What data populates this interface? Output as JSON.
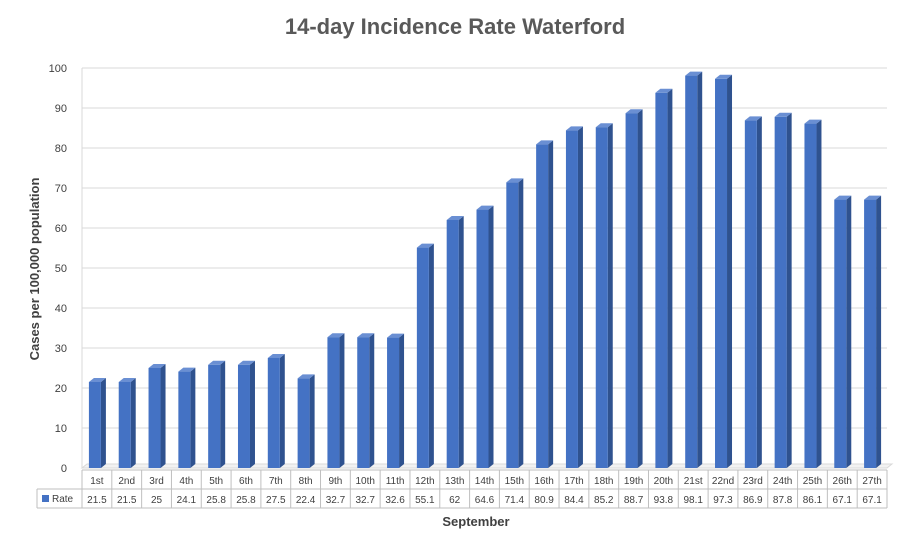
{
  "chart_data": {
    "type": "bar",
    "title": "14-day Incidence Rate Waterford",
    "xlabel": "September",
    "ylabel": "Cases per 100,000 population",
    "ylim": [
      0,
      100
    ],
    "yticks": [
      "0",
      "10",
      "20",
      "30",
      "40",
      "50",
      "60",
      "70",
      "80",
      "90",
      "100"
    ],
    "grid": true,
    "categories": [
      "1st",
      "2nd",
      "3rd",
      "4th",
      "5th",
      "6th",
      "7th",
      "8th",
      "9th",
      "10th",
      "11th",
      "12th",
      "13th",
      "14th",
      "15th",
      "16th",
      "17th",
      "18th",
      "19th",
      "20th",
      "21st",
      "22nd",
      "23rd",
      "24th",
      "25th",
      "26th",
      "27th"
    ],
    "series": [
      {
        "name": "Rate",
        "color": "#4472C4",
        "values": [
          21.5,
          21.5,
          25,
          24.1,
          25.8,
          25.8,
          27.5,
          22.4,
          32.7,
          32.7,
          32.6,
          55.1,
          62,
          64.6,
          71.4,
          80.9,
          84.4,
          85.2,
          88.7,
          93.8,
          98.1,
          97.3,
          86.9,
          87.8,
          86.1,
          67.1,
          67.1
        ]
      }
    ]
  }
}
